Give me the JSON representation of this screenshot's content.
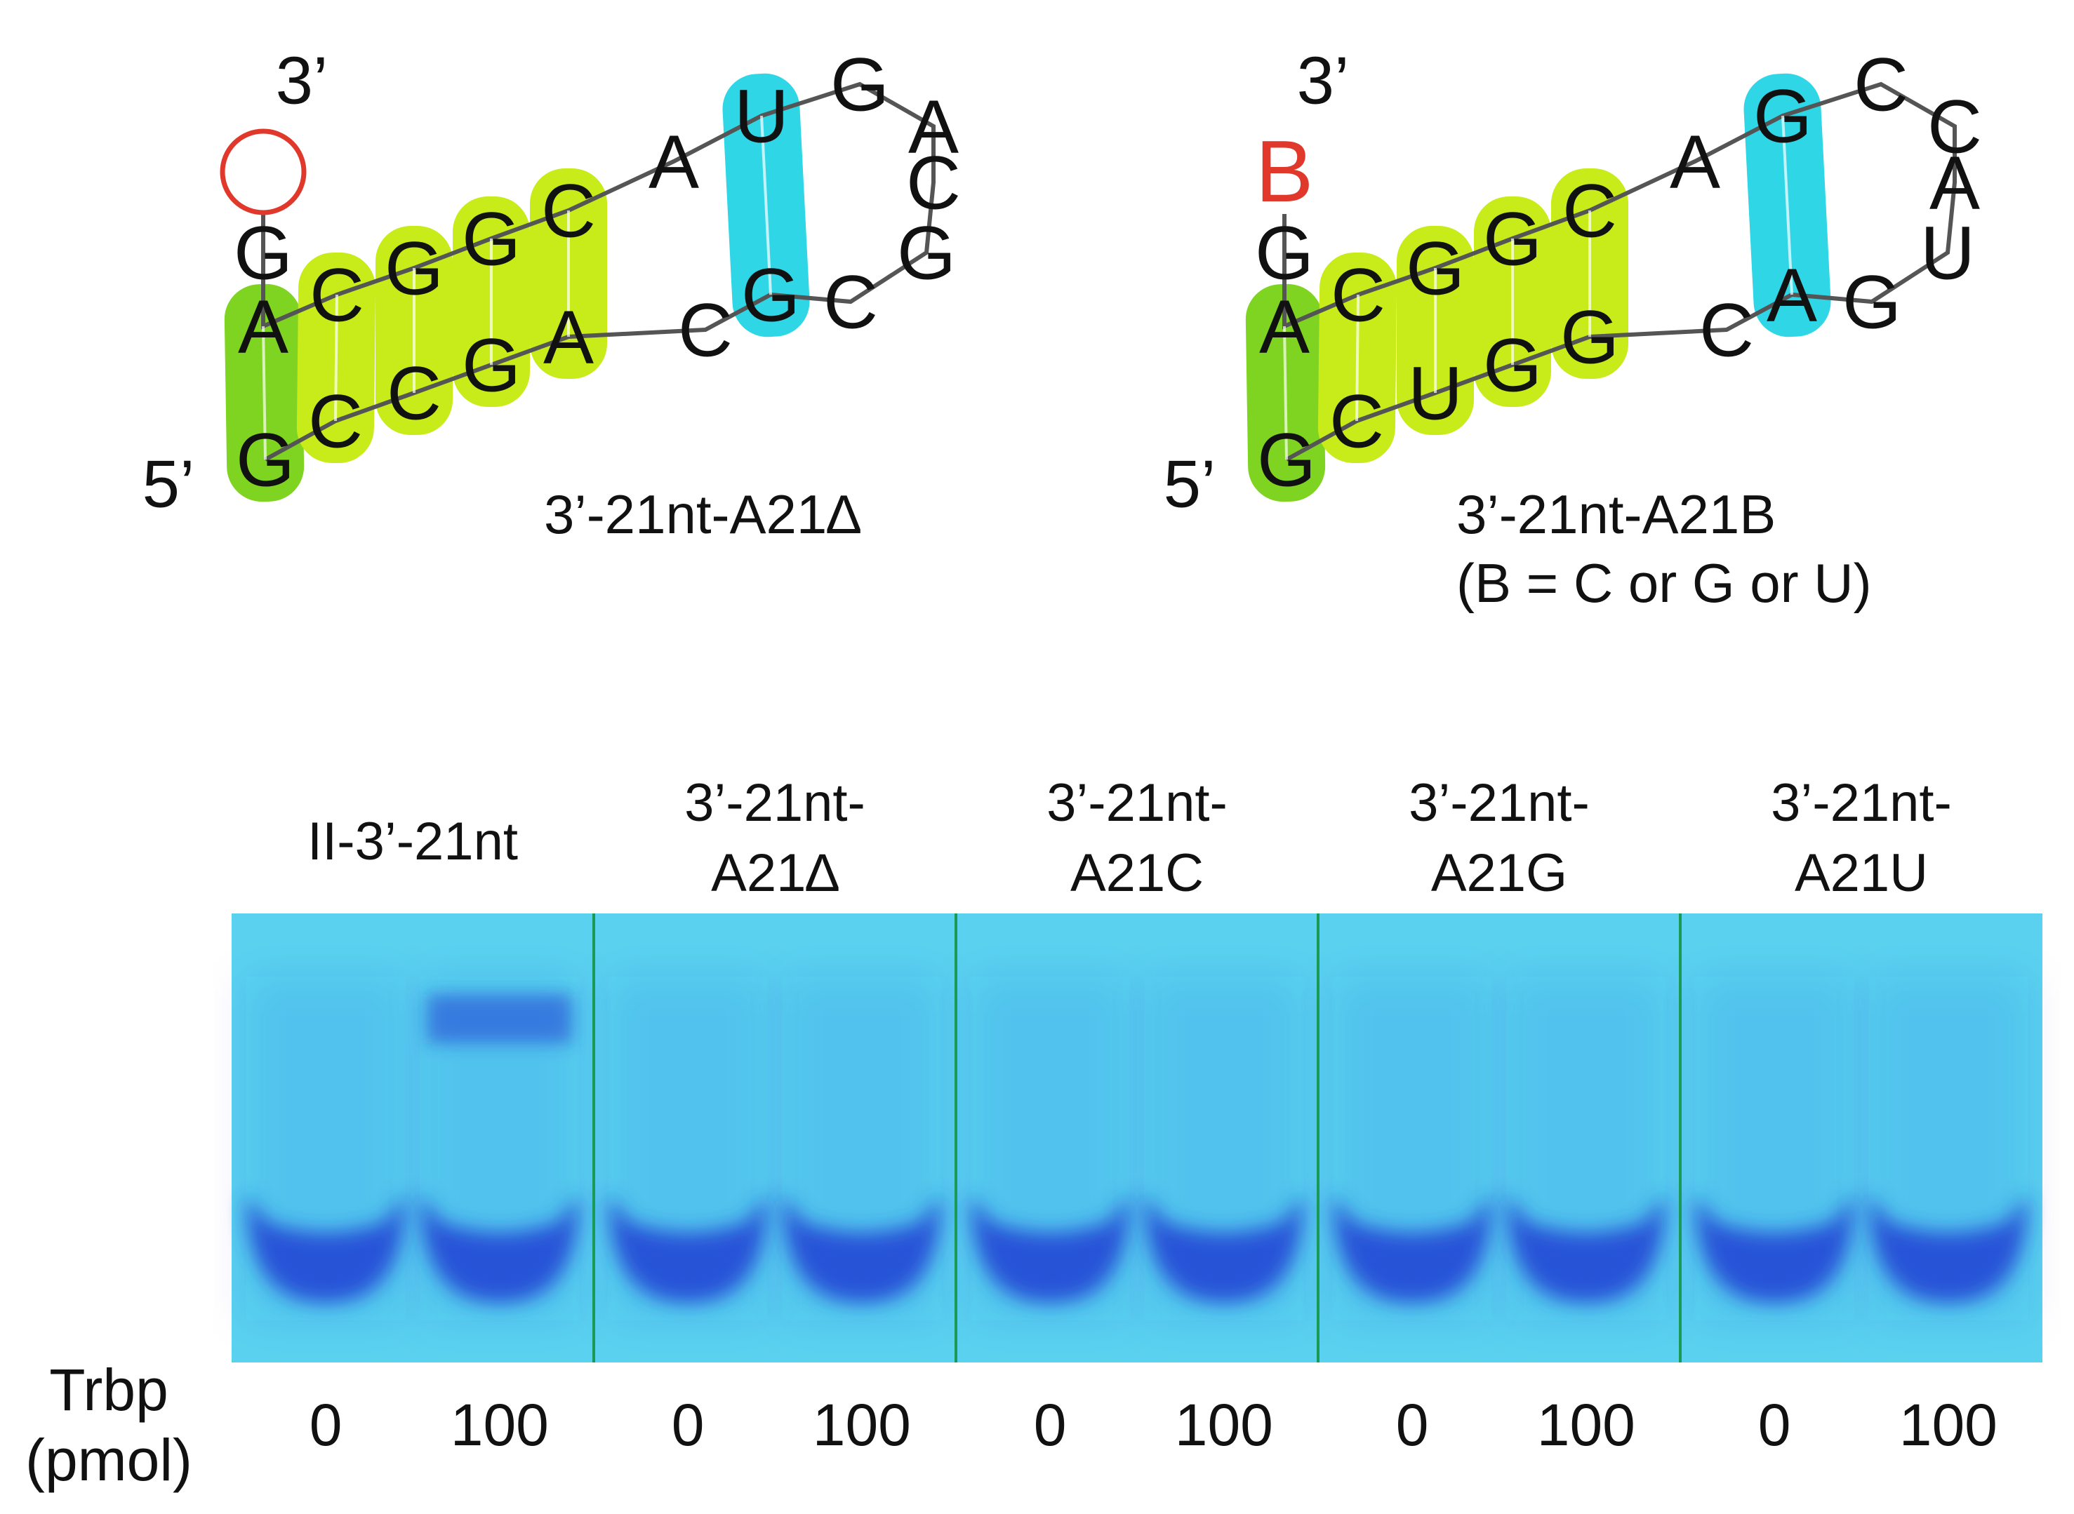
{
  "structures": [
    {
      "caption": [
        "3’-21nt-A21∆"
      ],
      "five_prime": "5’",
      "three_prime": "3’",
      "terminal": {
        "type": "deletion-circle",
        "text": "",
        "color": "#e0392b"
      },
      "sequence": [
        "G",
        "C",
        "C",
        "G",
        "A",
        "C",
        "G",
        "C",
        "G",
        "C",
        "A",
        "G",
        "U",
        "A",
        "C",
        "G",
        "G",
        "C",
        "A",
        "G",
        "G"
      ]
    },
    {
      "caption": [
        "3’-21nt-A21B",
        "(B = C or G or U)"
      ],
      "five_prime": "5’",
      "three_prime": "3’",
      "terminal": {
        "type": "letter",
        "text": "B",
        "color": "#e0392b"
      },
      "sequence": [
        "G",
        "C",
        "U",
        "G",
        "G",
        "C",
        "A",
        "G",
        "U",
        "A",
        "C",
        "C",
        "G",
        "A",
        "C",
        "G",
        "G",
        "C",
        "A",
        "G",
        "G"
      ]
    }
  ],
  "colors": {
    "terminal_pair": "#7fd321",
    "stem_pairs": "#c8eb1a",
    "loop_pair": "#2fd7e6",
    "gel_background": "#5ad2ef",
    "band": "#1f3fd4",
    "divider": "#1a9a55"
  },
  "gel": {
    "y_axis_label": [
      "Trbp",
      "(pmol)"
    ],
    "groups": [
      {
        "label": [
          "II-3’-21nt"
        ],
        "lanes": [
          {
            "trbp_pmol": "0",
            "shift": false
          },
          {
            "trbp_pmol": "100",
            "shift": true
          }
        ]
      },
      {
        "label": [
          "3’-21nt-",
          "A21∆"
        ],
        "lanes": [
          {
            "trbp_pmol": "0",
            "shift": false
          },
          {
            "trbp_pmol": "100",
            "shift": false
          }
        ]
      },
      {
        "label": [
          "3’-21nt-",
          "A21C"
        ],
        "lanes": [
          {
            "trbp_pmol": "0",
            "shift": false
          },
          {
            "trbp_pmol": "100",
            "shift": false
          }
        ]
      },
      {
        "label": [
          "3’-21nt-",
          "A21G"
        ],
        "lanes": [
          {
            "trbp_pmol": "0",
            "shift": false
          },
          {
            "trbp_pmol": "100",
            "shift": false
          }
        ]
      },
      {
        "label": [
          "3’-21nt-",
          "A21U"
        ],
        "lanes": [
          {
            "trbp_pmol": "0",
            "shift": false
          },
          {
            "trbp_pmol": "100",
            "shift": false
          }
        ]
      }
    ]
  }
}
